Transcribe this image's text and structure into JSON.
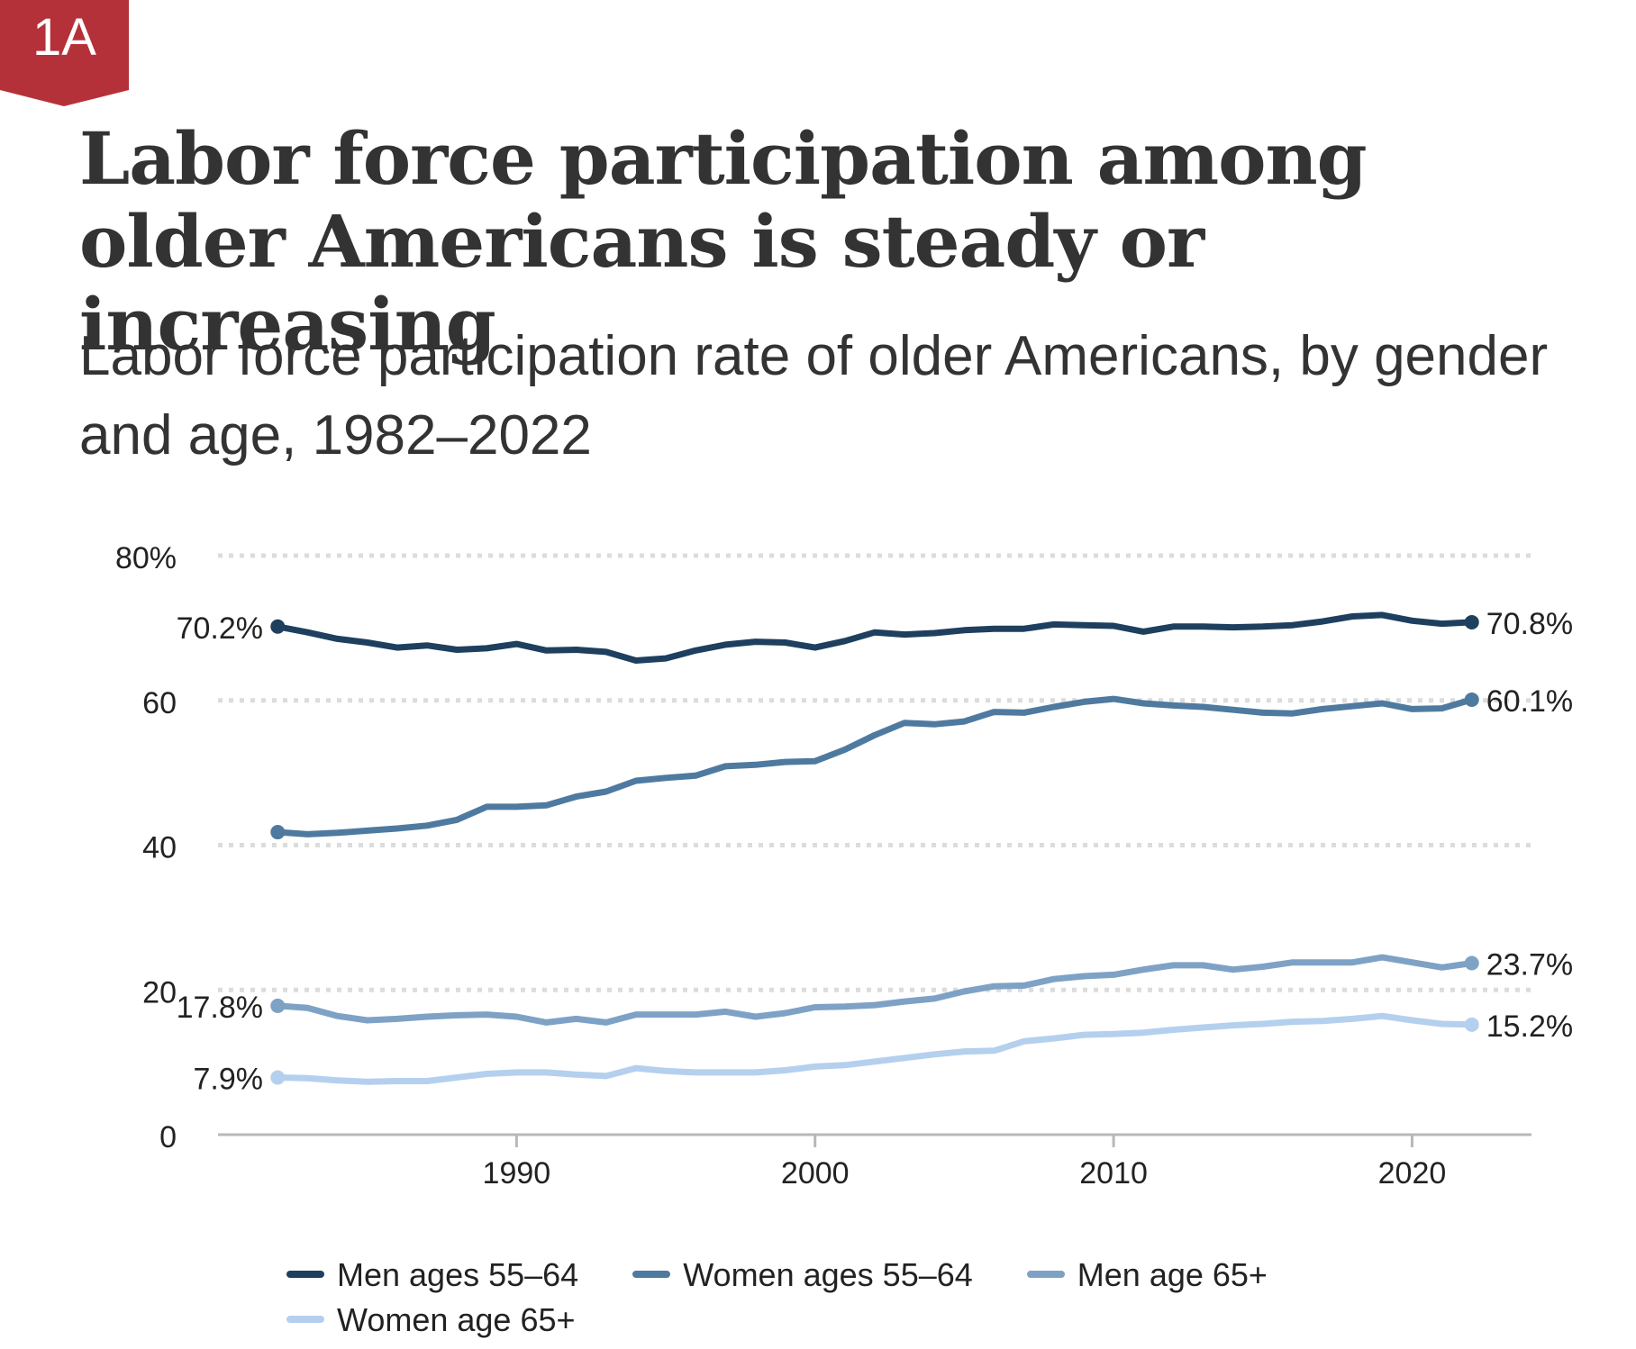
{
  "badge": {
    "label": "1A",
    "color": "#b5313a"
  },
  "title": "Labor force participation among older Americans is steady or increasing",
  "subtitle": "Labor force participation rate of older Americans, by gender and age, 1982–2022",
  "chart_data": {
    "type": "line",
    "title": "Labor force participation among older Americans is steady or increasing",
    "subtitle": "Labor force participation rate of older Americans, by gender and age, 1982–2022",
    "xlabel": "",
    "ylabel": "",
    "xlim": [
      1980,
      2024
    ],
    "ylim": [
      0,
      80
    ],
    "y_ticks": [
      {
        "value": 0,
        "label": "0"
      },
      {
        "value": 20,
        "label": "20"
      },
      {
        "value": 40,
        "label": "40"
      },
      {
        "value": 60,
        "label": "60"
      },
      {
        "value": 80,
        "label": "80%"
      }
    ],
    "x_ticks": [
      {
        "value": 1990,
        "label": "1990"
      },
      {
        "value": 2000,
        "label": "2000"
      },
      {
        "value": 2010,
        "label": "2010"
      },
      {
        "value": 2020,
        "label": "2020"
      }
    ],
    "grid": "horizontal dotted",
    "legend_position": "bottom",
    "x": [
      1982,
      1983,
      1984,
      1985,
      1986,
      1987,
      1988,
      1989,
      1990,
      1991,
      1992,
      1993,
      1994,
      1995,
      1996,
      1997,
      1998,
      1999,
      2000,
      2001,
      2002,
      2003,
      2004,
      2005,
      2006,
      2007,
      2008,
      2009,
      2010,
      2011,
      2012,
      2013,
      2014,
      2015,
      2016,
      2017,
      2018,
      2019,
      2020,
      2021,
      2022
    ],
    "series": [
      {
        "name": "Men ages 55–64",
        "color": "#1f3f5f",
        "start_label": "70.2%",
        "end_label": "70.8%",
        "values": [
          70.2,
          69.4,
          68.5,
          68.0,
          67.3,
          67.6,
          67.0,
          67.2,
          67.8,
          66.9,
          67.0,
          66.7,
          65.5,
          65.8,
          66.9,
          67.7,
          68.1,
          68.0,
          67.3,
          68.2,
          69.4,
          69.1,
          69.3,
          69.7,
          69.9,
          69.9,
          70.5,
          70.4,
          70.3,
          69.5,
          70.2,
          70.2,
          70.1,
          70.2,
          70.4,
          70.9,
          71.6,
          71.8,
          71.0,
          70.6,
          70.8
        ]
      },
      {
        "name": "Women ages 55–64",
        "color": "#4f7aa0",
        "start_label": "",
        "end_label": "60.1%",
        "values": [
          41.8,
          41.5,
          41.7,
          42.0,
          42.3,
          42.7,
          43.5,
          45.3,
          45.3,
          45.5,
          46.7,
          47.4,
          48.9,
          49.3,
          49.6,
          50.9,
          51.1,
          51.5,
          51.6,
          53.2,
          55.2,
          56.9,
          56.7,
          57.1,
          58.4,
          58.3,
          59.1,
          59.8,
          60.2,
          59.6,
          59.3,
          59.1,
          58.7,
          58.3,
          58.2,
          58.8,
          59.2,
          59.6,
          58.8,
          58.9,
          60.1
        ]
      },
      {
        "name": "Men age 65+",
        "color": "#7ea2c5",
        "start_label": "17.8%",
        "end_label": "23.7%",
        "values": [
          17.8,
          17.5,
          16.4,
          15.8,
          16.0,
          16.3,
          16.5,
          16.6,
          16.3,
          15.5,
          16.0,
          15.5,
          16.6,
          16.6,
          16.6,
          17.0,
          16.3,
          16.8,
          17.6,
          17.7,
          17.9,
          18.4,
          18.8,
          19.8,
          20.5,
          20.6,
          21.5,
          21.9,
          22.1,
          22.8,
          23.4,
          23.4,
          22.8,
          23.2,
          23.8,
          23.8,
          23.8,
          24.5,
          23.8,
          23.1,
          23.7
        ]
      },
      {
        "name": "Women age 65+",
        "color": "#b4d0ee",
        "start_label": "7.9%",
        "end_label": "15.2%",
        "values": [
          7.9,
          7.8,
          7.5,
          7.3,
          7.4,
          7.4,
          7.9,
          8.4,
          8.6,
          8.6,
          8.3,
          8.1,
          9.2,
          8.8,
          8.6,
          8.6,
          8.6,
          8.9,
          9.4,
          9.6,
          10.1,
          10.6,
          11.1,
          11.5,
          11.6,
          12.9,
          13.3,
          13.8,
          13.9,
          14.1,
          14.5,
          14.8,
          15.1,
          15.3,
          15.6,
          15.7,
          16.0,
          16.4,
          15.8,
          15.3,
          15.2
        ]
      }
    ]
  },
  "legend": [
    {
      "label": "Men ages 55–64",
      "color": "#1f3f5f"
    },
    {
      "label": "Women ages 55–64",
      "color": "#4f7aa0"
    },
    {
      "label": "Men age 65+",
      "color": "#7ea2c5"
    },
    {
      "label": "Women age 65+",
      "color": "#b4d0ee"
    }
  ]
}
